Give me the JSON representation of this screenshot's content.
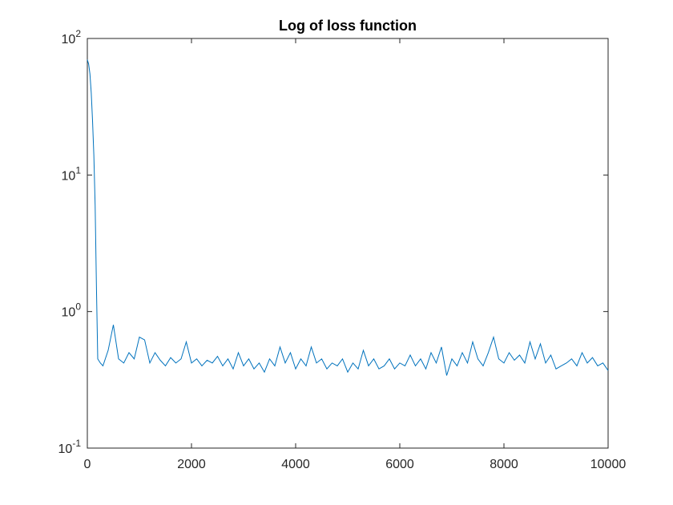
{
  "chart_data": {
    "type": "line",
    "title": "Log of loss function",
    "x": [
      0,
      25,
      50,
      75,
      100,
      125,
      150,
      175,
      200,
      250,
      300,
      400,
      500,
      600,
      700,
      800,
      900,
      1000,
      1100,
      1200,
      1300,
      1400,
      1500,
      1600,
      1700,
      1800,
      1900,
      2000,
      2100,
      2200,
      2300,
      2400,
      2500,
      2600,
      2700,
      2800,
      2900,
      3000,
      3100,
      3200,
      3300,
      3400,
      3500,
      3600,
      3700,
      3800,
      3900,
      4000,
      4100,
      4200,
      4300,
      4400,
      4500,
      4600,
      4700,
      4800,
      4900,
      5000,
      5100,
      5200,
      5300,
      5400,
      5500,
      5600,
      5700,
      5800,
      5900,
      6000,
      6100,
      6200,
      6300,
      6400,
      6500,
      6600,
      6700,
      6800,
      6900,
      7000,
      7100,
      7200,
      7300,
      7400,
      7500,
      7600,
      7700,
      7800,
      7900,
      8000,
      8100,
      8200,
      8300,
      8400,
      8500,
      8600,
      8700,
      8800,
      8900,
      9000,
      9100,
      9200,
      9300,
      9400,
      9500,
      9600,
      9700,
      9800,
      9900,
      10000
    ],
    "series": [
      {
        "color": "#0072bd",
        "values": [
          70,
          65,
          55,
          40,
          25,
          14,
          6,
          1.5,
          0.45,
          0.42,
          0.4,
          0.52,
          0.8,
          0.45,
          0.42,
          0.5,
          0.45,
          0.65,
          0.62,
          0.42,
          0.5,
          0.44,
          0.4,
          0.46,
          0.42,
          0.45,
          0.6,
          0.42,
          0.45,
          0.4,
          0.44,
          0.42,
          0.47,
          0.4,
          0.45,
          0.38,
          0.5,
          0.4,
          0.45,
          0.38,
          0.42,
          0.36,
          0.45,
          0.4,
          0.55,
          0.42,
          0.5,
          0.38,
          0.45,
          0.4,
          0.55,
          0.42,
          0.45,
          0.38,
          0.42,
          0.4,
          0.45,
          0.36,
          0.42,
          0.38,
          0.52,
          0.4,
          0.45,
          0.38,
          0.4,
          0.45,
          0.38,
          0.42,
          0.4,
          0.48,
          0.4,
          0.45,
          0.38,
          0.5,
          0.42,
          0.55,
          0.34,
          0.45,
          0.4,
          0.5,
          0.42,
          0.6,
          0.45,
          0.4,
          0.5,
          0.65,
          0.45,
          0.42,
          0.5,
          0.44,
          0.48,
          0.42,
          0.6,
          0.45,
          0.58,
          0.42,
          0.48,
          0.38,
          0.4,
          0.42,
          0.45,
          0.4,
          0.5,
          0.42,
          0.46,
          0.4,
          0.42,
          0.37
        ]
      }
    ],
    "xlim": [
      0,
      10000
    ],
    "xticks": [
      0,
      2000,
      4000,
      6000,
      8000,
      10000
    ],
    "ylim": [
      0.1,
      100
    ],
    "log_y": true,
    "yticks": [
      {
        "value": 0.1,
        "label": "10^-1"
      },
      {
        "value": 1,
        "label": "10^0"
      },
      {
        "value": 10,
        "label": "10^1"
      },
      {
        "value": 100,
        "label": "10^2"
      }
    ]
  }
}
